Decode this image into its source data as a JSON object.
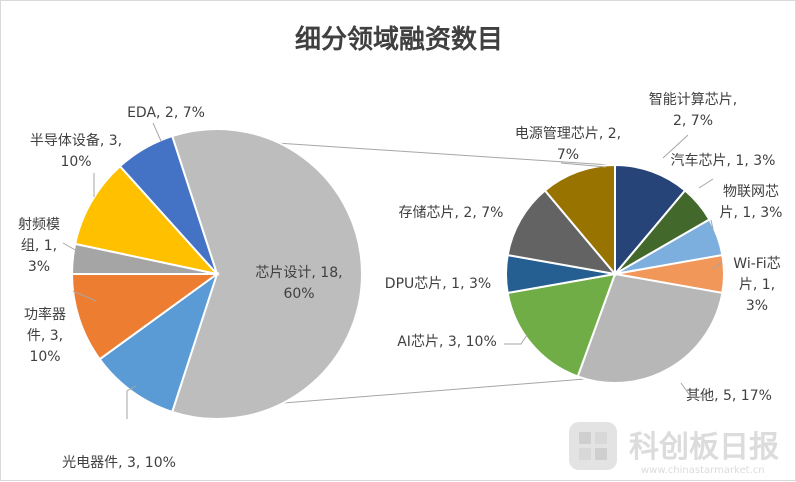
{
  "chart_data": {
    "type": "pie",
    "title": "细分领域融资数目",
    "main_pie": {
      "slices": [
        {
          "name": "芯片设计",
          "value": 18,
          "percent": "60%",
          "label_lines": [
            "芯片设计, 18,",
            "60%"
          ],
          "color": "#BDBDBD"
        },
        {
          "name": "光电器件",
          "value": 3,
          "percent": "10%",
          "label_lines": [
            "光电器件, 3, 10%"
          ],
          "color": "#5B9BD5"
        },
        {
          "name": "功率器件",
          "value": 3,
          "percent": "10%",
          "label_lines": [
            "功率器",
            "件, 3,",
            "10%"
          ],
          "color": "#ED7D31"
        },
        {
          "name": "射频模组",
          "value": 1,
          "percent": "3%",
          "label_lines": [
            "射频模",
            "组, 1,",
            "3%"
          ],
          "color": "#A5A5A5"
        },
        {
          "name": "半导体设备",
          "value": 3,
          "percent": "10%",
          "label_lines": [
            "半导体设备, 3,",
            "10%"
          ],
          "color": "#FFC000"
        },
        {
          "name": "EDA",
          "value": 2,
          "percent": "7%",
          "label_lines": [
            "EDA, 2, 7%"
          ],
          "color": "#4472C4"
        }
      ]
    },
    "secondary_pie": {
      "slices": [
        {
          "name": "智能计算芯片",
          "value": 2,
          "percent": "7%",
          "label_lines": [
            "智能计算芯片,",
            "2, 7%"
          ],
          "color": "#264478"
        },
        {
          "name": "汽车芯片",
          "value": 1,
          "percent": "3%",
          "label_lines": [
            "汽车芯片, 1, 3%"
          ],
          "color": "#43682B"
        },
        {
          "name": "物联网芯片",
          "value": 1,
          "percent": "3%",
          "label_lines": [
            "物联网芯",
            "片, 1, 3%"
          ],
          "color": "#7CAFDD"
        },
        {
          "name": "Wi-Fi芯片",
          "value": 1,
          "percent": "3%",
          "label_lines": [
            "Wi-Fi芯",
            "片, 1,",
            "3%"
          ],
          "color": "#F1975A"
        },
        {
          "name": "其他",
          "value": 5,
          "percent": "17%",
          "label_lines": [
            "其他, 5, 17%"
          ],
          "color": "#B7B7B7"
        },
        {
          "name": "AI芯片",
          "value": 3,
          "percent": "10%",
          "label_lines": [
            "AI芯片, 3, 10%"
          ],
          "color": "#70AD47"
        },
        {
          "name": "DPU芯片",
          "value": 1,
          "percent": "3%",
          "label_lines": [
            "DPU芯片, 1, 3%"
          ],
          "color": "#255E91"
        },
        {
          "name": "存储芯片",
          "value": 2,
          "percent": "7%",
          "label_lines": [
            "存储芯片, 2, 7%"
          ],
          "color": "#636363"
        },
        {
          "name": "电源管理芯片",
          "value": 2,
          "percent": "7%",
          "label_lines": [
            "电源管理芯片, 2,",
            "7%"
          ],
          "color": "#997300"
        }
      ]
    }
  },
  "watermark": {
    "brand": "科创板日报",
    "url": "www.chinastarmarket.cn"
  }
}
